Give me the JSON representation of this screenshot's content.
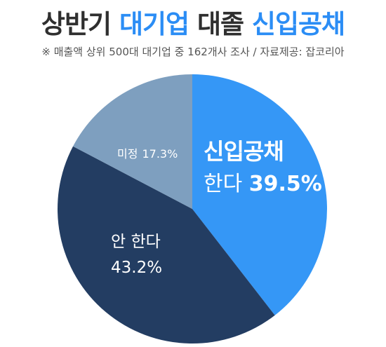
{
  "header": {
    "title_part1": "상반기 ",
    "title_accent1": "대기업",
    "title_part2": " 대졸 ",
    "title_accent2": "신입공채",
    "subtitle": "※ 매출액 상위 500대 대기업 중 162개사 조사 / 자료제공: 잡코리아"
  },
  "chart_data": {
    "type": "pie",
    "unit": "%",
    "slices": [
      {
        "label_line1": "신입공채",
        "label_line2_prefix": "한다 ",
        "value": 39.5,
        "value_text": "39.5%",
        "color": "#3597f6"
      },
      {
        "label_line1": "안 한다",
        "label_line2_prefix": "",
        "value": 43.2,
        "value_text": "43.2%",
        "color": "#233d62"
      },
      {
        "label_line1": "미정",
        "label_line2_prefix": "",
        "value": 17.3,
        "value_text": "17.3%",
        "color": "#7e9fbf"
      }
    ]
  }
}
